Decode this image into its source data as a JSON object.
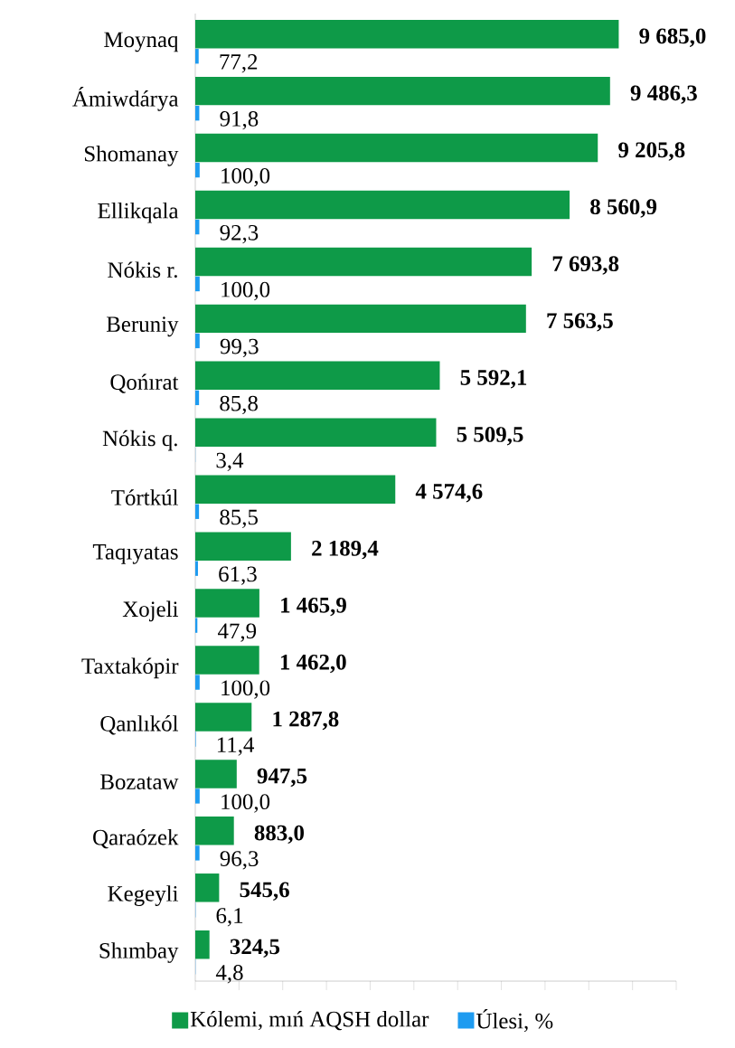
{
  "chart_data": {
    "type": "bar",
    "orientation": "horizontal",
    "categories": [
      "Moynaq",
      "Ámiwdárya",
      "Shomanay",
      "Ellikqala",
      "Nókis r.",
      "Beruniy",
      "Qońırat",
      "Nókis q.",
      "Tórtkúl",
      "Taqıyatas",
      "Xojeli",
      "Taxtakópir",
      "Qanlıkól",
      "Bozataw",
      "Qaraózek",
      "Kegeyli",
      "Shımbay"
    ],
    "series": [
      {
        "name": "Kólemi, mıń AQSH dollar",
        "color": "#0e9a48",
        "values": [
          9685.0,
          9486.3,
          9205.8,
          8560.9,
          7693.8,
          7563.5,
          5592.1,
          5509.5,
          4574.6,
          2189.4,
          1465.9,
          1462.0,
          1287.8,
          947.5,
          883.0,
          545.6,
          324.5
        ],
        "value_labels": [
          "9 685,0",
          "9 486,3",
          "9 205,8",
          "8 560,9",
          "7 693,8",
          "7 563,5",
          "5 592,1",
          "5 509,5",
          "4 574,6",
          "2 189,4",
          "1 465,9",
          "1 462,0",
          "1 287,8",
          "947,5",
          "883,0",
          "545,6",
          "324,5"
        ]
      },
      {
        "name": "Úlesi, %",
        "color": "#1e9bf0",
        "values": [
          77.2,
          91.8,
          100.0,
          92.3,
          100.0,
          99.3,
          85.8,
          3.4,
          85.5,
          61.3,
          47.9,
          100.0,
          11.4,
          100.0,
          96.3,
          6.1,
          4.8
        ],
        "value_labels": [
          "77,2",
          "91,8",
          "100,0",
          "92,3",
          "100,0",
          "99,3",
          "85,8",
          "3,4",
          "85,5",
          "61,3",
          "47,9",
          "100,0",
          "11,4",
          "100,0",
          "96,3",
          "6,1",
          "4,8"
        ]
      }
    ],
    "xlim": [
      0,
      11000
    ],
    "xticks": [
      {
        "value": 0,
        "label": null
      },
      {
        "value": 1000,
        "label": null
      },
      {
        "value": 2000,
        "label": null
      },
      {
        "value": 3000,
        "label": null
      },
      {
        "value": 4000,
        "label": null
      },
      {
        "value": 5000,
        "label": null
      },
      {
        "value": 6000,
        "label": null
      },
      {
        "value": 7000,
        "label": null
      },
      {
        "value": 8000,
        "label": null
      },
      {
        "value": 9000,
        "label": null
      },
      {
        "value": 10000,
        "label": null
      },
      {
        "value": 11000,
        "label": null
      }
    ],
    "tick_labels": "y",
    "grid": false,
    "legend": "bottom"
  }
}
